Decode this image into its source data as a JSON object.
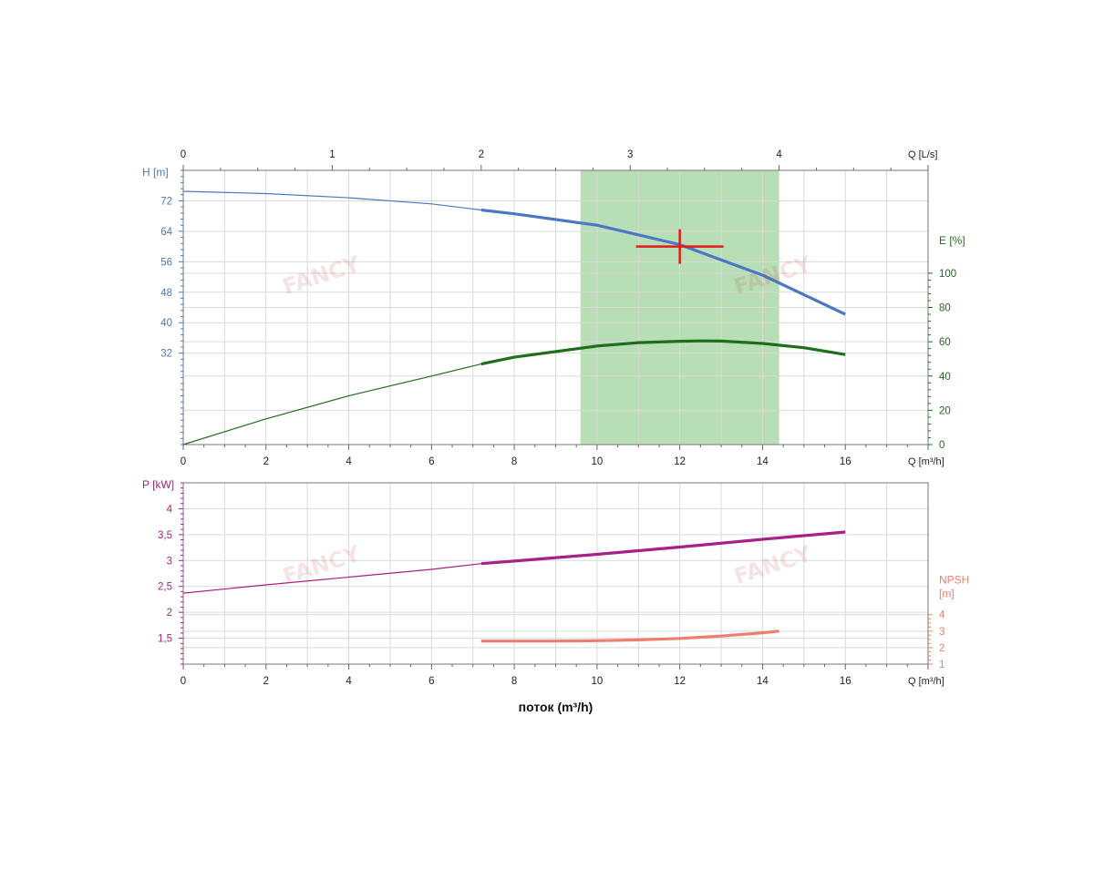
{
  "chart_data": [
    {
      "id": "head_efficiency",
      "type": "line",
      "x": {
        "label": "Q [m³/h]",
        "range": [
          0,
          18
        ],
        "ticks": [
          0,
          2,
          4,
          6,
          8,
          10,
          12,
          14,
          16
        ]
      },
      "x_top": {
        "label": "Q [L/s]",
        "range": [
          0,
          5
        ],
        "ticks": [
          0,
          1,
          2,
          3,
          4
        ]
      },
      "y_left": {
        "label": "H [m]",
        "range": [
          8,
          80
        ],
        "ticks": [
          32,
          40,
          48,
          56,
          64,
          72
        ]
      },
      "y_right": {
        "label": "E [%]",
        "range": [
          0,
          160
        ],
        "ticks": [
          0,
          20,
          40,
          60,
          80,
          100
        ]
      },
      "grid": true,
      "operating_range": [
        9.6,
        14.4
      ],
      "duty_point": {
        "q": 12,
        "h": 60
      },
      "series": [
        {
          "name": "H [m]",
          "axis": "left",
          "color": "#4a78c4",
          "thick_from": 7.2,
          "points": [
            [
              0,
              74.5
            ],
            [
              2,
              73.9
            ],
            [
              4,
              72.8
            ],
            [
              6,
              71.2
            ],
            [
              7.2,
              69.6
            ],
            [
              8,
              68.6
            ],
            [
              10,
              65.6
            ],
            [
              12,
              60.5
            ],
            [
              14,
              52.5
            ],
            [
              16,
              42.2
            ]
          ]
        },
        {
          "name": "E [%]",
          "axis": "right",
          "color": "#1e6e1e",
          "thick_from": 7.2,
          "points": [
            [
              0,
              0
            ],
            [
              2,
              15
            ],
            [
              4,
              28.5
            ],
            [
              6,
              40
            ],
            [
              7.2,
              47
            ],
            [
              8,
              51
            ],
            [
              10,
              57.5
            ],
            [
              11,
              59.5
            ],
            [
              12,
              60.3
            ],
            [
              12.5,
              60.5
            ],
            [
              13,
              60.4
            ],
            [
              14,
              59
            ],
            [
              15,
              56.5
            ],
            [
              16,
              52.5
            ]
          ]
        }
      ]
    },
    {
      "id": "power_npsh",
      "type": "line",
      "x": {
        "label": "Q [m³/h]",
        "range": [
          0,
          18
        ],
        "ticks": [
          0,
          2,
          4,
          6,
          8,
          10,
          12,
          14,
          16
        ]
      },
      "xlabel": "поток (m³/h)",
      "y_left": {
        "label": "P [kW]",
        "range": [
          1,
          4.5
        ],
        "ticks": [
          1.5,
          2,
          2.5,
          3,
          3.5,
          4
        ]
      },
      "y_right": {
        "label": [
          "NPSH",
          "[m]"
        ],
        "range": [
          1,
          12
        ],
        "ticks": [
          1,
          2,
          3,
          4
        ]
      },
      "grid": true,
      "series": [
        {
          "name": "P [kW]",
          "axis": "left",
          "color": "#a8208a",
          "thick_from": 7.2,
          "points": [
            [
              0,
              2.37
            ],
            [
              2,
              2.53
            ],
            [
              4,
              2.68
            ],
            [
              6,
              2.83
            ],
            [
              7.2,
              2.94
            ],
            [
              8,
              2.99
            ],
            [
              10,
              3.12
            ],
            [
              12,
              3.26
            ],
            [
              14,
              3.41
            ],
            [
              16,
              3.55
            ]
          ]
        },
        {
          "name": "NPSH [m]",
          "axis": "right",
          "color": "#f07e6e",
          "thick_from": 7.2,
          "points": [
            [
              7.2,
              2.4
            ],
            [
              8,
              2.4
            ],
            [
              9,
              2.4
            ],
            [
              10,
              2.42
            ],
            [
              11,
              2.47
            ],
            [
              12,
              2.56
            ],
            [
              13,
              2.7
            ],
            [
              14,
              2.9
            ],
            [
              14.4,
              3.0
            ]
          ]
        }
      ]
    }
  ],
  "watermark": "FANCY"
}
